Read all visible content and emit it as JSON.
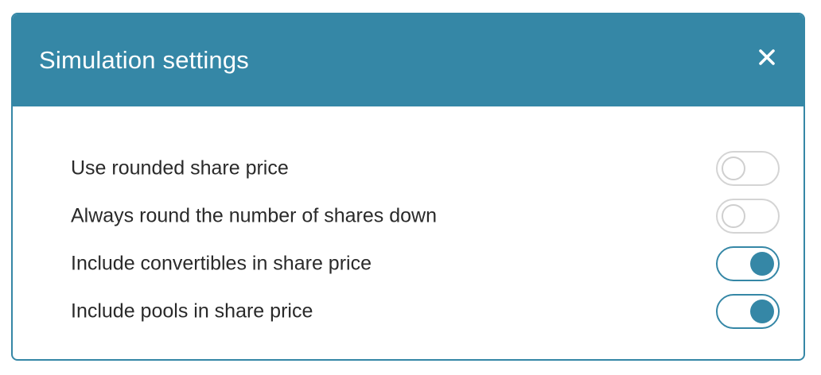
{
  "modal": {
    "title": "Simulation settings",
    "close_icon": "close-icon",
    "settings": [
      {
        "label": "Use rounded share price",
        "enabled": false
      },
      {
        "label": "Always round the number of shares down",
        "enabled": false
      },
      {
        "label": "Include convertibles in share price",
        "enabled": true
      },
      {
        "label": "Include pools in share price",
        "enabled": true
      }
    ]
  },
  "colors": {
    "accent": "#3587a6",
    "header_text": "#ffffff",
    "label_text": "#2a2a2a",
    "toggle_off_border": "#d4d4d4"
  }
}
